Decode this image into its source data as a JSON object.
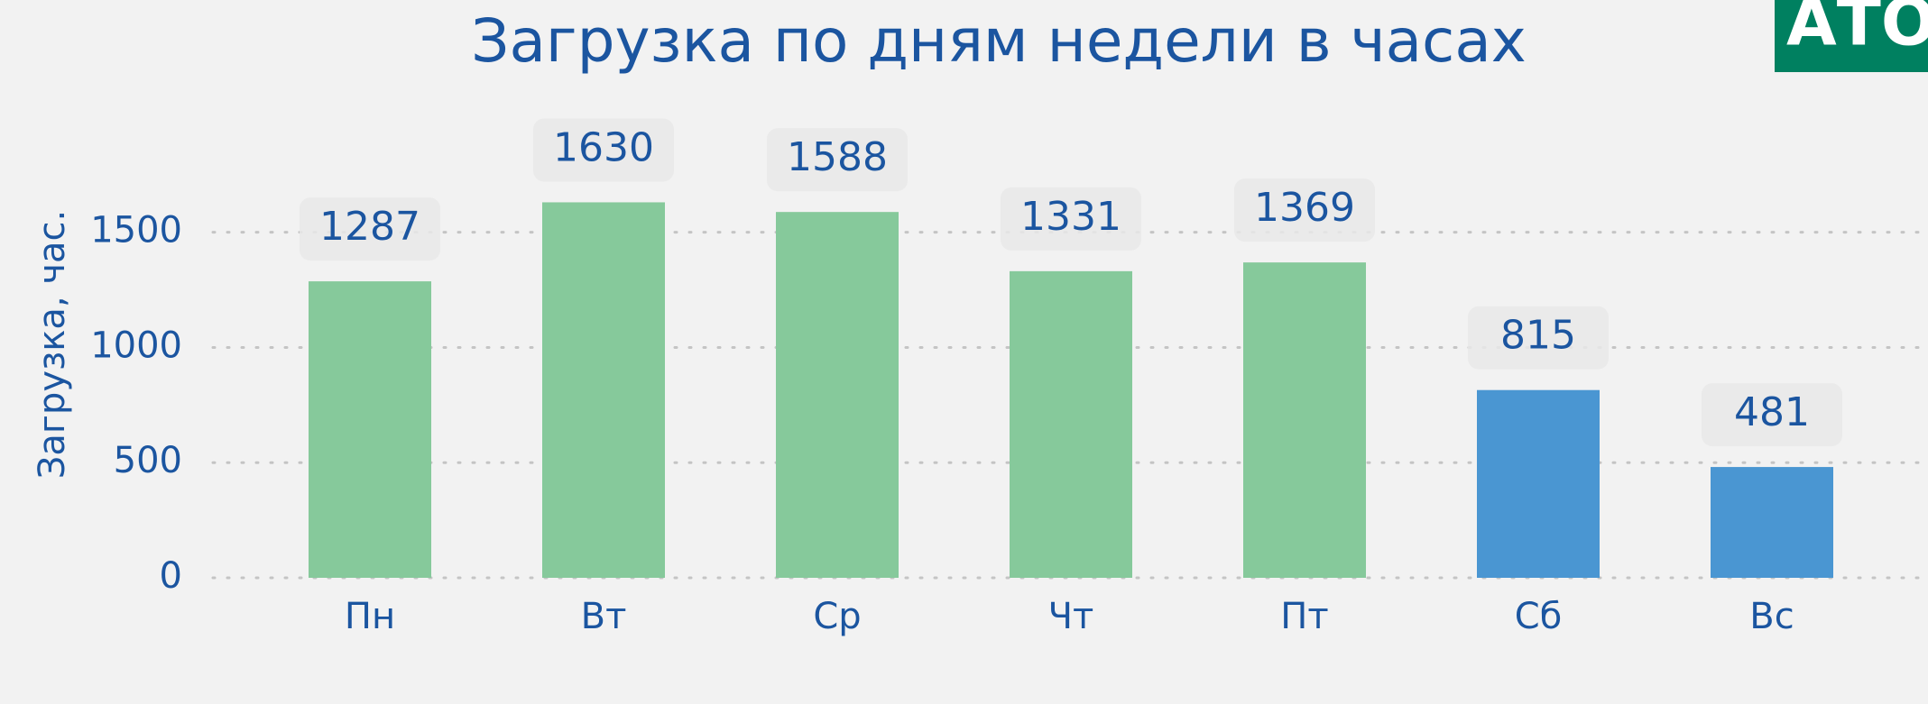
{
  "chart_data": {
    "type": "bar",
    "title": "Загрузка по дням недели в часах",
    "ylabel": "Загрузка, час.",
    "categories": [
      "Пн",
      "Вт",
      "Ср",
      "Чт",
      "Пт",
      "Сб",
      "Вс"
    ],
    "values": [
      1287,
      1630,
      1588,
      1331,
      1369,
      815,
      481
    ],
    "colors": [
      "#86c99b",
      "#86c99b",
      "#86c99b",
      "#86c99b",
      "#86c99b",
      "#4a96d2",
      "#4a96d2"
    ],
    "ylim": [
      0,
      1800
    ],
    "yticks": [
      0,
      500,
      1000,
      1500
    ],
    "grid": true
  },
  "logo": "АТОМ"
}
